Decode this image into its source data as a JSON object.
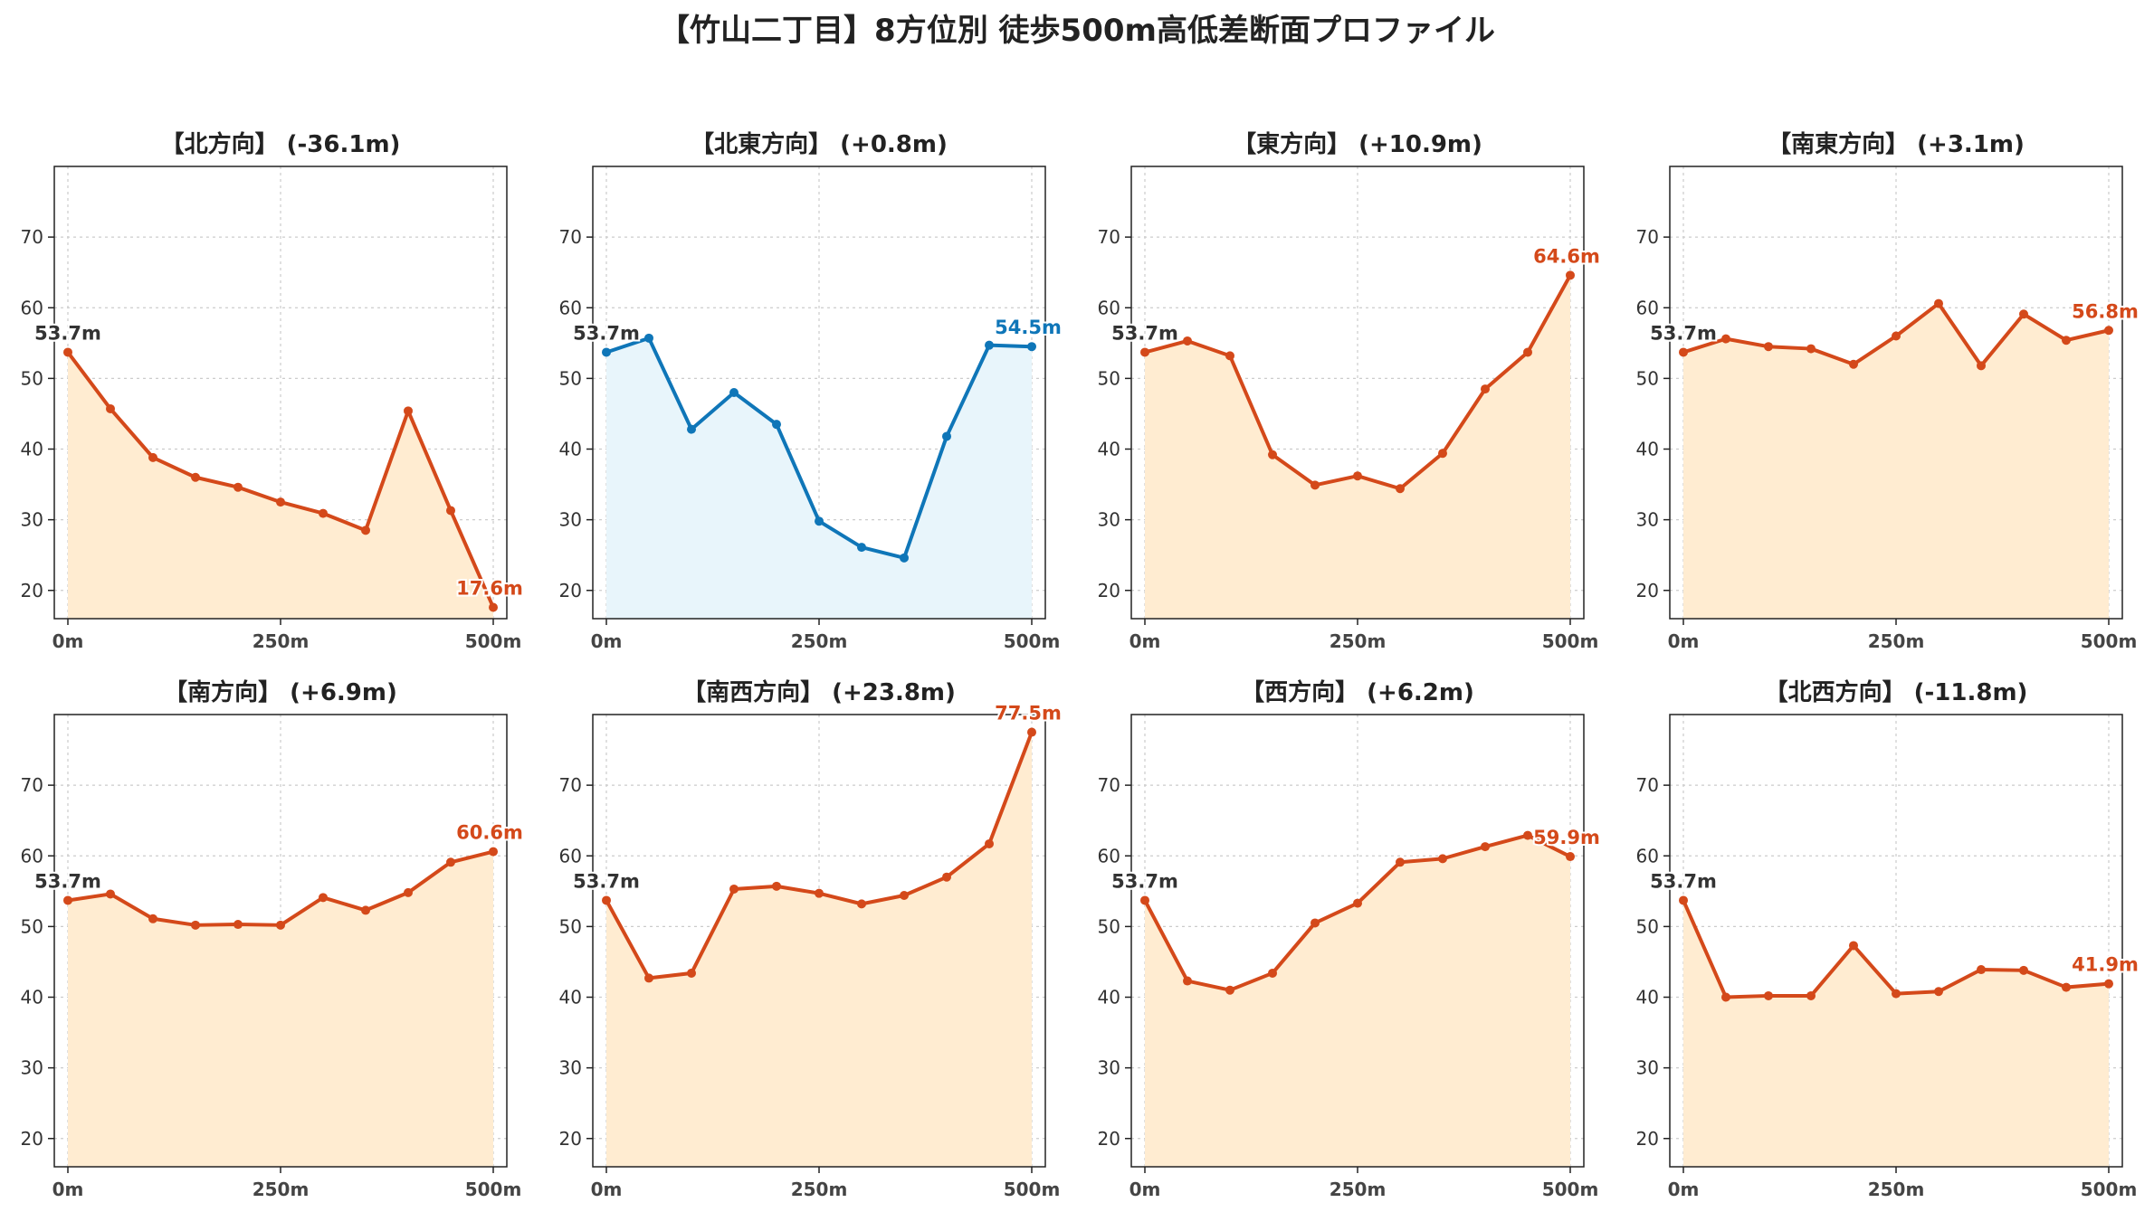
{
  "title": "【竹山二丁目】8方位別 徒歩500m高低差断面プロファイル",
  "colors": {
    "down_line": "#d4491a",
    "down_fill": "#ffecd1",
    "flat_line": "#0f76b8",
    "flat_fill": "#e8f5fb",
    "start_label": "#333333",
    "grid": "#cccccc"
  },
  "chart_data": [
    {
      "type": "area",
      "title": "【北方向】 (-36.1m)",
      "x": [
        0,
        50,
        100,
        150,
        200,
        250,
        300,
        350,
        400,
        450,
        500
      ],
      "xticks": [
        "0m",
        "250m",
        "500m"
      ],
      "yticks": [
        "20",
        "30",
        "40",
        "50",
        "60",
        "70"
      ],
      "ylim": [
        16,
        80
      ],
      "grid": true,
      "style": "orange",
      "series": [
        {
          "values": [
            53.7,
            45.7,
            38.8,
            36.0,
            34.6,
            32.5,
            30.9,
            28.5,
            45.4,
            31.3,
            17.6
          ]
        }
      ],
      "start_label": "53.7m",
      "end_label": "17.6m"
    },
    {
      "type": "area",
      "title": "【北東方向】 (+0.8m)",
      "x": [
        0,
        50,
        100,
        150,
        200,
        250,
        300,
        350,
        400,
        450,
        500
      ],
      "xticks": [
        "0m",
        "250m",
        "500m"
      ],
      "yticks": [
        "20",
        "30",
        "40",
        "50",
        "60",
        "70"
      ],
      "ylim": [
        16,
        80
      ],
      "grid": true,
      "style": "blue",
      "series": [
        {
          "values": [
            53.7,
            55.7,
            42.8,
            48.0,
            43.5,
            29.8,
            26.1,
            24.6,
            41.8,
            54.7,
            54.5
          ]
        }
      ],
      "start_label": "53.7m",
      "end_label": "54.5m"
    },
    {
      "type": "area",
      "title": "【東方向】 (+10.9m)",
      "x": [
        0,
        50,
        100,
        150,
        200,
        250,
        300,
        350,
        400,
        450,
        500
      ],
      "xticks": [
        "0m",
        "250m",
        "500m"
      ],
      "yticks": [
        "20",
        "30",
        "40",
        "50",
        "60",
        "70"
      ],
      "ylim": [
        16,
        80
      ],
      "grid": true,
      "style": "orange",
      "series": [
        {
          "values": [
            53.7,
            55.3,
            53.2,
            39.2,
            34.9,
            36.2,
            34.4,
            39.4,
            48.5,
            53.7,
            64.6
          ]
        }
      ],
      "start_label": "53.7m",
      "end_label": "64.6m"
    },
    {
      "type": "area",
      "title": "【南東方向】 (+3.1m)",
      "x": [
        0,
        50,
        100,
        150,
        200,
        250,
        300,
        350,
        400,
        450,
        500
      ],
      "xticks": [
        "0m",
        "250m",
        "500m"
      ],
      "yticks": [
        "20",
        "30",
        "40",
        "50",
        "60",
        "70"
      ],
      "ylim": [
        16,
        80
      ],
      "grid": true,
      "style": "orange",
      "series": [
        {
          "values": [
            53.7,
            55.6,
            54.5,
            54.2,
            52.0,
            56.0,
            60.6,
            51.8,
            59.1,
            55.4,
            56.8
          ]
        }
      ],
      "start_label": "53.7m",
      "end_label": "56.8m"
    },
    {
      "type": "area",
      "title": "【南方向】 (+6.9m)",
      "x": [
        0,
        50,
        100,
        150,
        200,
        250,
        300,
        350,
        400,
        450,
        500
      ],
      "xticks": [
        "0m",
        "250m",
        "500m"
      ],
      "yticks": [
        "20",
        "30",
        "40",
        "50",
        "60",
        "70"
      ],
      "ylim": [
        16,
        80
      ],
      "grid": true,
      "style": "orange",
      "series": [
        {
          "values": [
            53.7,
            54.6,
            51.1,
            50.2,
            50.3,
            50.2,
            54.1,
            52.3,
            54.8,
            59.1,
            60.6
          ]
        }
      ],
      "start_label": "53.7m",
      "end_label": "60.6m"
    },
    {
      "type": "area",
      "title": "【南西方向】 (+23.8m)",
      "x": [
        0,
        50,
        100,
        150,
        200,
        250,
        300,
        350,
        400,
        450,
        500
      ],
      "xticks": [
        "0m",
        "250m",
        "500m"
      ],
      "yticks": [
        "20",
        "30",
        "40",
        "50",
        "60",
        "70"
      ],
      "ylim": [
        16,
        80
      ],
      "grid": true,
      "style": "orange",
      "series": [
        {
          "values": [
            53.7,
            42.7,
            43.4,
            55.3,
            55.7,
            54.7,
            53.2,
            54.4,
            57.0,
            61.7,
            77.5
          ]
        }
      ],
      "start_label": "53.7m",
      "end_label": "77.5m"
    },
    {
      "type": "area",
      "title": "【西方向】 (+6.2m)",
      "x": [
        0,
        50,
        100,
        150,
        200,
        250,
        300,
        350,
        400,
        450,
        500
      ],
      "xticks": [
        "0m",
        "250m",
        "500m"
      ],
      "yticks": [
        "20",
        "30",
        "40",
        "50",
        "60",
        "70"
      ],
      "ylim": [
        16,
        80
      ],
      "grid": true,
      "style": "orange",
      "series": [
        {
          "values": [
            53.7,
            42.3,
            41.0,
            43.4,
            50.5,
            53.3,
            59.1,
            59.6,
            61.3,
            62.9,
            59.9
          ]
        }
      ],
      "start_label": "53.7m",
      "end_label": "59.9m"
    },
    {
      "type": "area",
      "title": "【北西方向】 (-11.8m)",
      "x": [
        0,
        50,
        100,
        150,
        200,
        250,
        300,
        350,
        400,
        450,
        500
      ],
      "xticks": [
        "0m",
        "250m",
        "500m"
      ],
      "yticks": [
        "20",
        "30",
        "40",
        "50",
        "60",
        "70"
      ],
      "ylim": [
        16,
        80
      ],
      "grid": true,
      "style": "orange",
      "series": [
        {
          "values": [
            53.7,
            40.0,
            40.2,
            40.2,
            47.3,
            40.5,
            40.8,
            43.9,
            43.8,
            41.4,
            41.9
          ]
        }
      ],
      "start_label": "53.7m",
      "end_label": "41.9m"
    }
  ]
}
